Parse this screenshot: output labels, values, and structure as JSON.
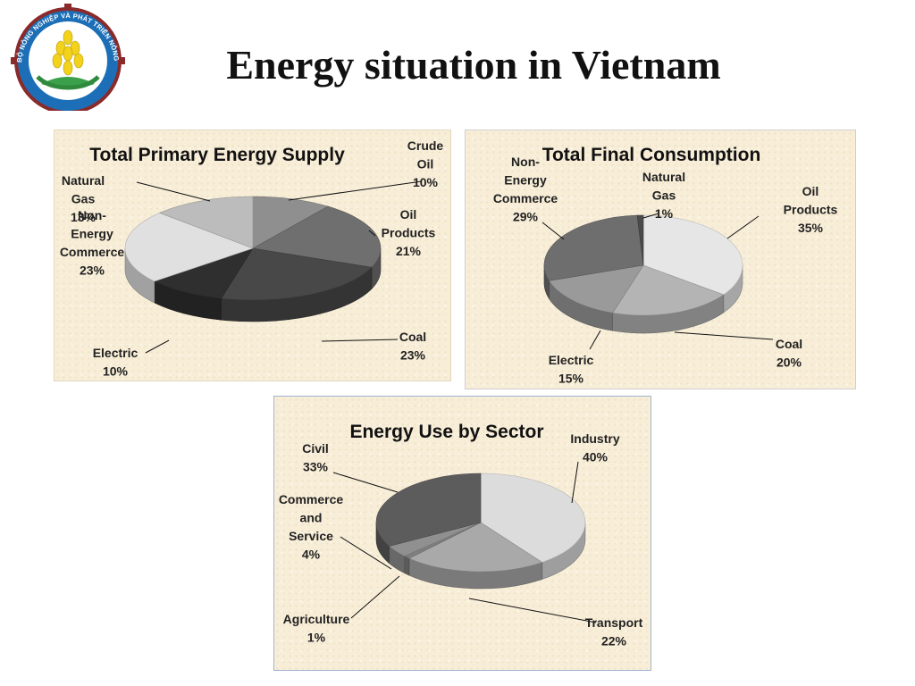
{
  "slide": {
    "title": "Energy situation in Vietnam"
  },
  "logo": {
    "ring_text": "BỘ NÔNG NGHIỆP VÀ PHÁT TRIỂN NÔNG THÔN"
  },
  "colors": {
    "panel_bg": "#f8eed8",
    "slice_palette": [
      "#d0d0d0",
      "#8a8a8a",
      "#555555",
      "#3a3a3a",
      "#bdbdbd",
      "#e4e4e4",
      "#a7a7a7",
      "#6c6c6c"
    ]
  },
  "chart_data": [
    {
      "type": "pie",
      "title": "Total Primary Energy Supply",
      "slices": [
        {
          "label": "Crude Oil",
          "value": 10,
          "display": "10%",
          "label_lines": [
            "Crude",
            "Oil",
            "10%"
          ],
          "color": "#8f8f8f"
        },
        {
          "label": "Oil Products",
          "value": 21,
          "display": "21%",
          "label_lines": [
            "Oil",
            "Products",
            "21%"
          ],
          "color": "#6f6f6f"
        },
        {
          "label": "Coal",
          "value": 23,
          "display": "23%",
          "label_lines": [
            "Coal",
            "23%"
          ],
          "color": "#484848"
        },
        {
          "label": "Electric",
          "value": 10,
          "display": "10%",
          "label_lines": [
            "Electric",
            "10%"
          ],
          "color": "#2f2f2f"
        },
        {
          "label": "Non-Energy Commerce",
          "value": 23,
          "display": "23%",
          "label_lines": [
            "Non-",
            "Energy",
            "Commerce",
            "23%"
          ],
          "color": "#e0e0e0"
        },
        {
          "label": "Natural Gas",
          "value": 13,
          "display": "13%",
          "label_lines": [
            "Natural",
            "Gas",
            "13%"
          ],
          "color": "#bcbcbc"
        }
      ]
    },
    {
      "type": "pie",
      "title": "Total Final Consumption",
      "slices": [
        {
          "label": "Oil Products",
          "value": 35,
          "display": "35%",
          "label_lines": [
            "Oil",
            "Products",
            "35%"
          ],
          "color": "#e6e6e6"
        },
        {
          "label": "Coal",
          "value": 20,
          "display": "20%",
          "label_lines": [
            "Coal",
            "20%"
          ],
          "color": "#b4b4b4"
        },
        {
          "label": "Electric",
          "value": 15,
          "display": "15%",
          "label_lines": [
            "Electric",
            "15%"
          ],
          "color": "#9a9a9a"
        },
        {
          "label": "Non-Energy Commerce",
          "value": 29,
          "display": "29%",
          "label_lines": [
            "Non-",
            "Energy",
            "Commerce",
            "29%"
          ],
          "color": "#6e6e6e"
        },
        {
          "label": "Natural Gas",
          "value": 1,
          "display": "1%",
          "label_lines": [
            "Natural",
            "Gas",
            "1%"
          ],
          "color": "#4a4a4a"
        }
      ]
    },
    {
      "type": "pie",
      "title": "Energy Use by Sector",
      "slices": [
        {
          "label": "Industry",
          "value": 40,
          "display": "40%",
          "label_lines": [
            "Industry",
            "40%"
          ],
          "color": "#dcdcdc"
        },
        {
          "label": "Transport",
          "value": 22,
          "display": "22%",
          "label_lines": [
            "Transport",
            "22%"
          ],
          "color": "#a9a9a9"
        },
        {
          "label": "Agriculture",
          "value": 1,
          "display": "1%",
          "label_lines": [
            "Agriculture",
            "1%"
          ],
          "color": "#7f7f7f"
        },
        {
          "label": "Commerce and Service",
          "value": 4,
          "display": "4%",
          "label_lines": [
            "Commerce",
            "and",
            "Service",
            "4%"
          ],
          "color": "#909090"
        },
        {
          "label": "Civil",
          "value": 33,
          "display": "33%",
          "label_lines": [
            "Civil",
            "33%"
          ],
          "color": "#5c5c5c"
        }
      ]
    }
  ]
}
